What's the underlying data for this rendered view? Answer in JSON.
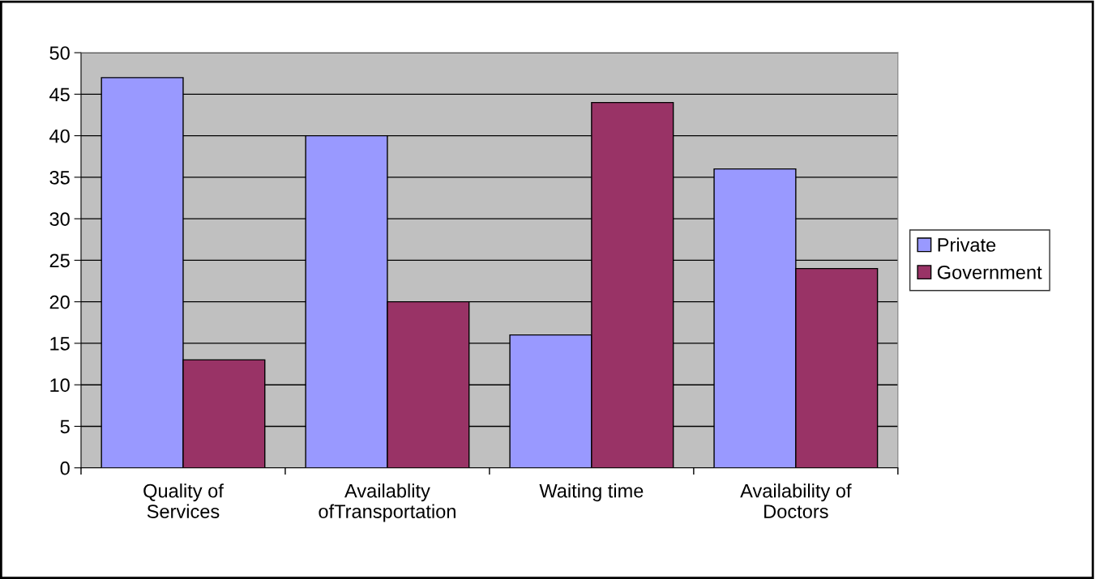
{
  "chart_data": {
    "type": "bar",
    "categories": [
      "Quality of\nServices",
      "Availablity\nofTransportation",
      "Waiting time",
      "Availability of\nDoctors"
    ],
    "series": [
      {
        "name": "Private",
        "color": "#9999ff",
        "values": [
          47,
          40,
          16,
          36
        ]
      },
      {
        "name": "Government",
        "color": "#993366",
        "values": [
          13,
          20,
          44,
          24
        ]
      }
    ],
    "ylim": [
      0,
      50
    ],
    "yticks": [
      0,
      5,
      10,
      15,
      20,
      25,
      30,
      35,
      40,
      45,
      50
    ],
    "grid": "y",
    "legend": "right"
  }
}
